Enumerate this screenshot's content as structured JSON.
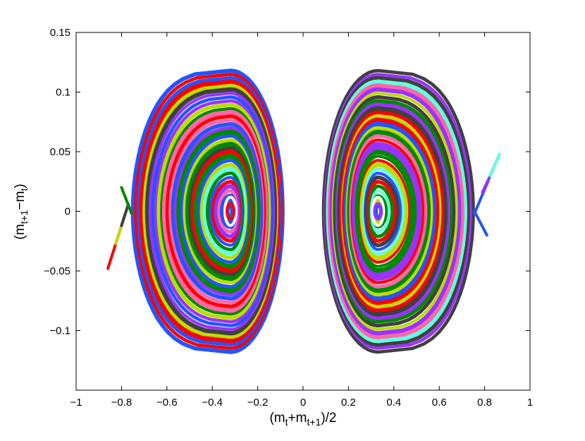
{
  "chart_data": {
    "type": "scatter",
    "title": "",
    "xlabel": {
      "base": "(m",
      "sub1": "t",
      "mid": "+m",
      "sub2": "t+1",
      "tail": ")/2"
    },
    "ylabel": {
      "base": "(m",
      "sub1": "t+1",
      "mid": "−m",
      "sub2": "t",
      "tail": ")"
    },
    "xlim": [
      -1,
      1
    ],
    "ylim": [
      -0.15,
      0.15
    ],
    "xticks": [
      -1,
      -0.8,
      -0.6,
      -0.4,
      -0.2,
      0,
      0.2,
      0.4,
      0.6,
      0.8,
      1
    ],
    "xtick_labels": [
      "−1",
      "−0.8",
      "−0.6",
      "−0.4",
      "−0.2",
      "0",
      "0.2",
      "0.4",
      "0.6",
      "0.8",
      "1"
    ],
    "yticks": [
      -0.1,
      -0.05,
      0,
      0.05,
      0.1,
      0.15
    ],
    "ytick_labels": [
      "−0.1",
      "−0.05",
      "0",
      "0.05",
      "0.1",
      "0.15"
    ],
    "grid": false,
    "legend": "none",
    "palette": [
      "#ff0000",
      "#008800",
      "#404040",
      "#2255ff",
      "#bbdd00",
      "#9933ff",
      "#66ffdd",
      "#ff66aa",
      "#ffffff"
    ],
    "orbits": [
      {
        "name_hidden": "left",
        "center": [
          -0.32,
          0.0
        ],
        "x_left": -0.75,
        "x_right": -0.09,
        "y_half_height": 0.118,
        "ring_count": 34,
        "center_dot_color": "#ff0000"
      },
      {
        "name_hidden": "right",
        "center": [
          0.33,
          0.0
        ],
        "x_left": 0.09,
        "x_right": 0.75,
        "y_half_height": 0.118,
        "ring_count": 34,
        "center_dot_color": "#9933ff"
      }
    ],
    "separatrix_segments": [
      {
        "points": [
          [
            -0.86,
            -0.048
          ],
          [
            -0.78,
            0.0
          ]
        ],
        "color": "#ff0000"
      },
      {
        "points": [
          [
            -0.825,
            -0.027
          ],
          [
            -0.79,
            -0.006
          ]
        ],
        "color": "#bbdd00"
      },
      {
        "points": [
          [
            -0.8,
            -0.012
          ],
          [
            -0.77,
            0.006
          ]
        ],
        "color": "#404040"
      },
      {
        "points": [
          [
            -0.8,
            0.02
          ],
          [
            -0.755,
            -0.002
          ]
        ],
        "color": "#008800"
      },
      {
        "points": [
          [
            0.755,
            -0.002
          ],
          [
            0.865,
            0.048
          ]
        ],
        "color": "#2255ff"
      },
      {
        "points": [
          [
            0.82,
            0.027
          ],
          [
            0.865,
            0.048
          ]
        ],
        "color": "#66ffdd"
      },
      {
        "points": [
          [
            0.79,
            0.016
          ],
          [
            0.82,
            0.028
          ]
        ],
        "color": "#9933ff"
      },
      {
        "points": [
          [
            0.755,
            0.0
          ],
          [
            0.81,
            -0.02
          ]
        ],
        "color": "#2255ff"
      }
    ]
  }
}
